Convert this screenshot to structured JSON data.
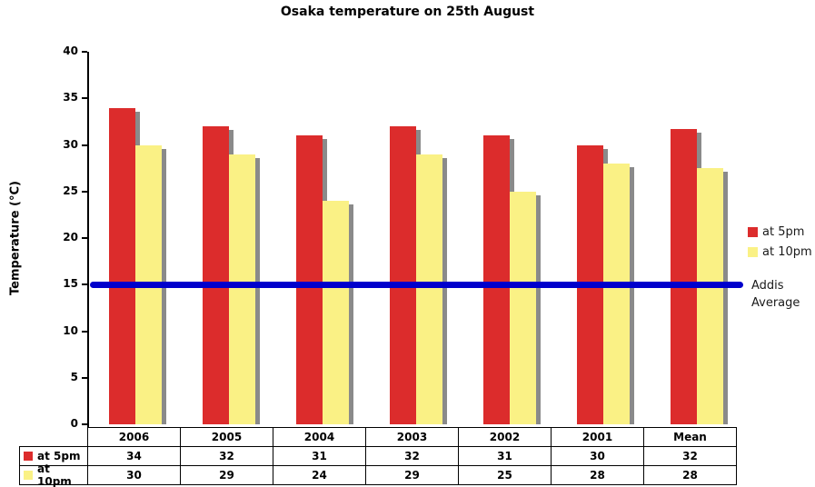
{
  "chart_data": {
    "type": "bar",
    "title": "Osaka temperature on 25th August",
    "ylabel": "Temperature (°C)",
    "xlabel": "",
    "categories": [
      "2006",
      "2005",
      "2004",
      "2003",
      "2002",
      "2001",
      "Mean"
    ],
    "series": [
      {
        "name": "at 5pm",
        "color": "#dc2c2c",
        "values": [
          34,
          32,
          31,
          32,
          31,
          30,
          31.7
        ]
      },
      {
        "name": "at 10pm",
        "color": "#faf185",
        "values": [
          30,
          29,
          24,
          29,
          25,
          28,
          27.5
        ]
      }
    ],
    "reference_line": {
      "label": "Addis Average",
      "value": 15,
      "color": "#0000cc"
    },
    "ylim": [
      0,
      40
    ],
    "yticks": [
      0,
      5,
      10,
      15,
      20,
      25,
      30,
      35,
      40
    ],
    "grid": false,
    "legend_position": "right",
    "bar_shadow_color": "#8a8a8a"
  },
  "legend": {
    "items": [
      {
        "label": "at 5pm",
        "color": "#dc2c2c"
      },
      {
        "label": "at 10pm",
        "color": "#faf185"
      }
    ],
    "reference_label_lines": [
      "Addis",
      "Average"
    ]
  },
  "table": {
    "header": [
      "2006",
      "2005",
      "2004",
      "2003",
      "2002",
      "2001",
      "Mean"
    ],
    "rows": [
      {
        "label": "at 5pm",
        "color": "#dc2c2c",
        "values": [
          "34",
          "32",
          "31",
          "32",
          "31",
          "30",
          "32"
        ]
      },
      {
        "label": "at 10pm",
        "color": "#faf185",
        "values": [
          "30",
          "29",
          "24",
          "29",
          "25",
          "28",
          "28"
        ]
      }
    ]
  }
}
